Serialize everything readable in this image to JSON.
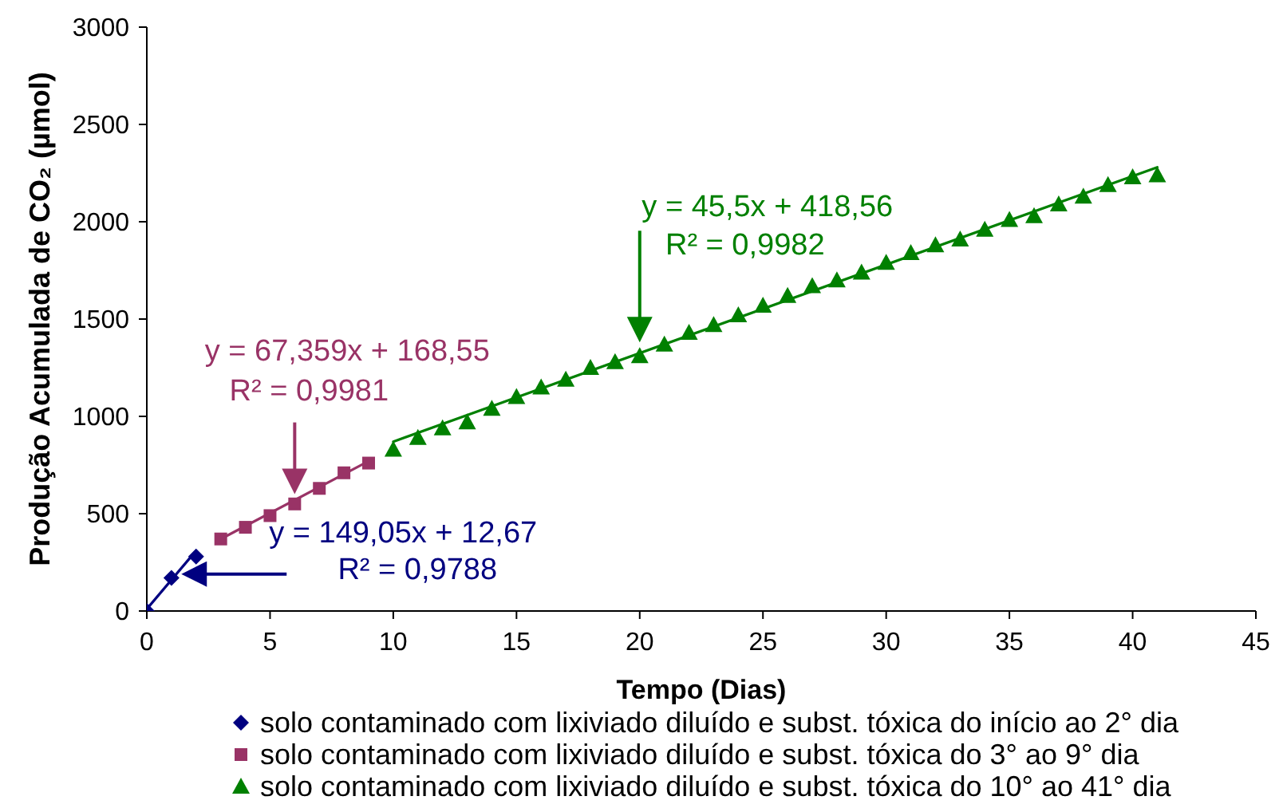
{
  "chart_data": {
    "type": "scatter",
    "xlabel": "Tempo (Dias)",
    "ylabel": "Produção Acumulada de CO₂ (µmol)",
    "xlim": [
      0,
      45
    ],
    "xticks": [
      0,
      5,
      10,
      15,
      20,
      25,
      30,
      35,
      40,
      45
    ],
    "ylim": [
      0,
      3000
    ],
    "yticks": [
      0,
      500,
      1000,
      1500,
      2000,
      2500,
      3000
    ],
    "legend": "bottom",
    "series": [
      {
        "name": "solo contaminado com lixiviado diluído e subst. tóxica do início ao 2° dia",
        "color": "#000080",
        "marker": "diamond",
        "x": [
          0,
          1,
          2
        ],
        "values": [
          0,
          170,
          280
        ]
      },
      {
        "name": "solo contaminado com lixiviado diluído e subst. tóxica do 3° ao 9° dia",
        "color": "#993366",
        "marker": "square",
        "x": [
          3,
          4,
          5,
          6,
          7,
          8,
          9
        ],
        "values": [
          370,
          430,
          490,
          550,
          630,
          710,
          760
        ]
      },
      {
        "name": "solo contaminado com lixiviado diluído e subst. tóxica do 10° ao 41° dia",
        "color": "#008000",
        "marker": "triangle",
        "x": [
          10,
          11,
          12,
          13,
          14,
          15,
          16,
          17,
          18,
          19,
          20,
          21,
          22,
          23,
          24,
          25,
          26,
          27,
          28,
          29,
          30,
          31,
          32,
          33,
          34,
          35,
          36,
          37,
          38,
          39,
          40,
          41
        ],
        "values": [
          830,
          890,
          940,
          970,
          1040,
          1100,
          1150,
          1190,
          1250,
          1280,
          1310,
          1370,
          1430,
          1470,
          1520,
          1570,
          1620,
          1670,
          1700,
          1740,
          1790,
          1840,
          1880,
          1910,
          1960,
          2010,
          2030,
          2090,
          2130,
          2190,
          2230,
          2240
        ]
      },
      {
        "color": "#000080",
        "type": "line",
        "x": [
          0,
          2
        ],
        "values": [
          10,
          310
        ]
      },
      {
        "color": "#993366",
        "type": "line",
        "x": [
          3,
          9
        ],
        "values": [
          370,
          770
        ]
      },
      {
        "color": "#008000",
        "type": "line",
        "x": [
          10,
          41
        ],
        "values": [
          870,
          2280
        ]
      }
    ],
    "annotations": [
      {
        "text": "y = 149,05x + 12,67\nR² = 0,9788",
        "x": 1.4,
        "y": 190
      },
      {
        "text": "y = 67,359x + 168,55\nR² = 0,9981",
        "x": 6,
        "y": 600
      },
      {
        "text": "y = 45,5x + 418,56\nR² = 0,9982",
        "x": 20,
        "y": 1380
      }
    ]
  }
}
